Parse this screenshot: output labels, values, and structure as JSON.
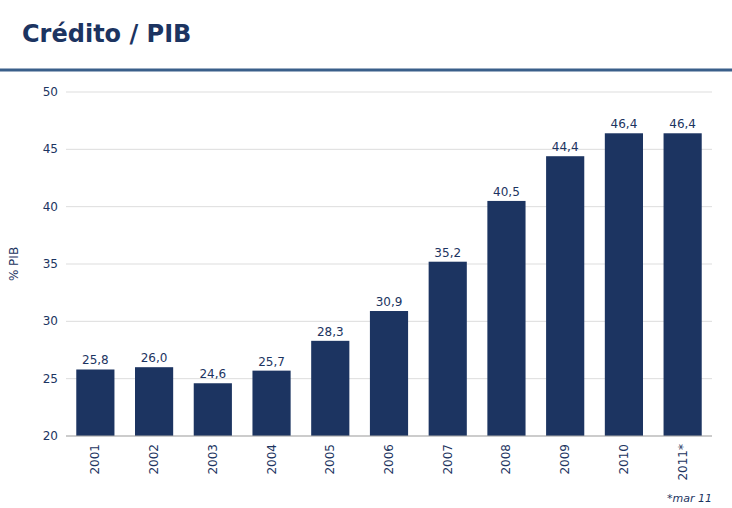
{
  "chart_data": {
    "type": "bar",
    "title": "Crédito / PIB",
    "ylabel": "% PIB",
    "categories": [
      "2001",
      "2002",
      "2003",
      "2004",
      "2005",
      "2006",
      "2007",
      "2008",
      "2009",
      "2010",
      "2011*"
    ],
    "values": [
      25.8,
      26.0,
      24.6,
      25.7,
      28.3,
      30.9,
      35.2,
      40.5,
      44.4,
      46.4,
      46.4
    ],
    "value_labels": [
      "25,8",
      "26,0",
      "24,6",
      "25,7",
      "28,3",
      "30,9",
      "35,2",
      "40,5",
      "44,4",
      "46,4",
      "46,4"
    ],
    "color": "#1c3461",
    "ylim": [
      20,
      50
    ],
    "yticks": [
      20,
      25,
      30,
      35,
      40,
      45,
      50
    ],
    "grid": true,
    "data_labels": true,
    "annotation": "*mar 11"
  }
}
